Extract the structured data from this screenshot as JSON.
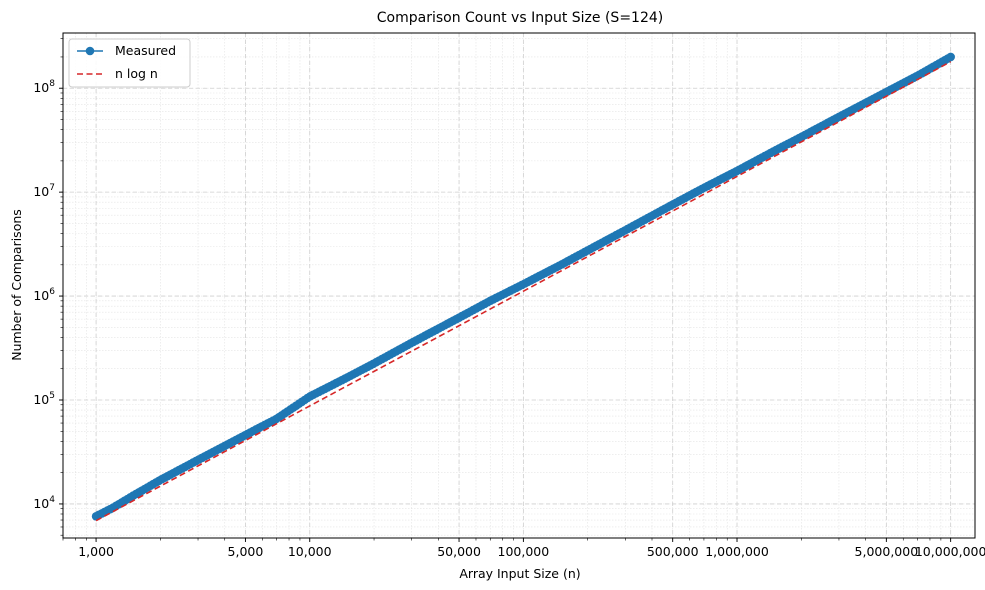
{
  "chart_data": {
    "type": "line",
    "title": "Comparison Count vs Input Size (S=124)",
    "xlabel": "Array Input Size (n)",
    "ylabel": "Number of Comparisons",
    "xscale": "log",
    "yscale": "log",
    "xlim": [
      700,
      13000000
    ],
    "ylim": [
      4700,
      340000000
    ],
    "grid": true,
    "legend_position": "top-left",
    "x_tick_labels": [
      {
        "value": 1000,
        "label": "1,000"
      },
      {
        "value": 5000,
        "label": "5,000"
      },
      {
        "value": 10000,
        "label": "10,000"
      },
      {
        "value": 50000,
        "label": "50,000"
      },
      {
        "value": 100000,
        "label": "100,000"
      },
      {
        "value": 500000,
        "label": "500,000"
      },
      {
        "value": 1000000,
        "label": "1,000,000"
      },
      {
        "value": 5000000,
        "label": "5,000,000"
      },
      {
        "value": 10000000,
        "label": "10,000,000"
      }
    ],
    "y_tick_labels": [
      {
        "value": 10000,
        "base": "10",
        "exp": "4"
      },
      {
        "value": 100000,
        "base": "10",
        "exp": "5"
      },
      {
        "value": 1000000,
        "base": "10",
        "exp": "6"
      },
      {
        "value": 10000000,
        "base": "10",
        "exp": "7"
      },
      {
        "value": 100000000,
        "base": "10",
        "exp": "8"
      }
    ],
    "series": [
      {
        "name": "Measured",
        "color": "#1f77b4",
        "style": "solid-with-circle-markers",
        "x": [
          1000,
          1200,
          1500,
          2000,
          3000,
          5000,
          7000,
          10000,
          15000,
          20000,
          30000,
          50000,
          70000,
          100000,
          150000,
          200000,
          300000,
          500000,
          700000,
          1000000,
          1500000,
          2000000,
          3000000,
          5000000,
          7000000,
          10000000
        ],
        "y": [
          7600,
          9200,
          12100,
          17000,
          26500,
          46000,
          66000,
          108000,
          165000,
          225000,
          355000,
          620000,
          900000,
          1300000,
          2000000,
          2750000,
          4300000,
          7600000,
          11000000,
          16000000,
          25000000,
          34000000,
          53000000,
          92000000,
          132000000,
          200000000
        ]
      },
      {
        "name": "n log n",
        "color": "#d62728",
        "style": "dashed",
        "x": [
          1000,
          10000000
        ],
        "y": [
          6900,
          180000000
        ]
      }
    ]
  }
}
